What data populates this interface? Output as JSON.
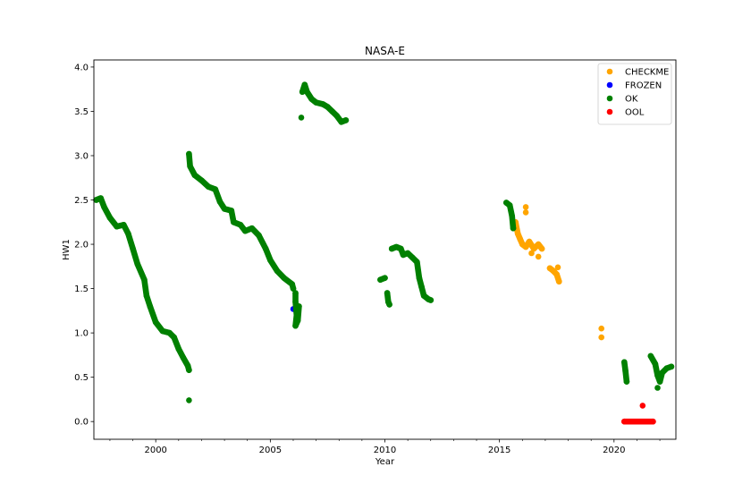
{
  "chart_data": {
    "type": "scatter",
    "title": "NASA-E",
    "xlabel": "Year",
    "ylabel": "HW1",
    "xlim": [
      1997.3,
      2022.7
    ],
    "ylim": [
      -0.2,
      4.08
    ],
    "x_ticks": [
      2000,
      2005,
      2010,
      2015,
      2020
    ],
    "x_tick_labels": [
      "2000",
      "2005",
      "2010",
      "2015",
      "2020"
    ],
    "y_ticks": [
      0.0,
      0.5,
      1.0,
      1.5,
      2.0,
      2.5,
      3.0,
      3.5,
      4.0
    ],
    "y_tick_labels": [
      "0.0",
      "0.5",
      "1.0",
      "1.5",
      "2.0",
      "2.5",
      "3.0",
      "3.5",
      "4.0"
    ],
    "grid": false,
    "legend_position": "top-right",
    "colors": {
      "CHECKME": "#ffa500",
      "FROZEN": "#0000ff",
      "OK": "#008000",
      "OOL": "#ff0000"
    },
    "series": [
      {
        "name": "CHECKME",
        "color": "#ffa500",
        "segments": [
          [
            [
              2015.7,
              2.25
            ],
            [
              2015.8,
              2.12
            ],
            [
              2015.9,
              2.06
            ],
            [
              2016.0,
              2.0
            ],
            [
              2016.15,
              1.97
            ],
            [
              2016.3,
              2.03
            ],
            [
              2016.5,
              1.95
            ],
            [
              2016.7,
              2.0
            ],
            [
              2016.85,
              1.95
            ]
          ],
          [
            [
              2017.2,
              1.73
            ],
            [
              2017.35,
              1.7
            ],
            [
              2017.5,
              1.66
            ],
            [
              2017.6,
              1.58
            ]
          ]
        ],
        "points": [
          [
            2016.15,
            2.42
          ],
          [
            2016.15,
            2.36
          ],
          [
            2016.4,
            1.9
          ],
          [
            2016.7,
            1.86
          ],
          [
            2017.55,
            1.74
          ],
          [
            2019.45,
            1.05
          ],
          [
            2019.45,
            0.95
          ]
        ]
      },
      {
        "name": "FROZEN",
        "color": "#0000ff",
        "segments": [],
        "points": [
          [
            2006.0,
            1.27
          ]
        ]
      },
      {
        "name": "OK",
        "color": "#008000",
        "segments": [
          [
            [
              1997.4,
              2.5
            ],
            [
              1997.6,
              2.52
            ],
            [
              1997.75,
              2.42
            ],
            [
              1998.0,
              2.3
            ],
            [
              1998.3,
              2.2
            ],
            [
              1998.6,
              2.22
            ],
            [
              1998.8,
              2.12
            ],
            [
              1999.0,
              1.95
            ],
            [
              1999.2,
              1.78
            ],
            [
              1999.5,
              1.6
            ],
            [
              1999.6,
              1.42
            ],
            [
              1999.75,
              1.3
            ],
            [
              2000.0,
              1.12
            ],
            [
              2000.3,
              1.02
            ],
            [
              2000.6,
              1.0
            ],
            [
              2000.8,
              0.95
            ],
            [
              2001.0,
              0.82
            ],
            [
              2001.2,
              0.72
            ],
            [
              2001.4,
              0.63
            ],
            [
              2001.45,
              0.58
            ]
          ],
          [
            [
              2001.45,
              3.02
            ],
            [
              2001.5,
              2.88
            ],
            [
              2001.7,
              2.78
            ],
            [
              2002.0,
              2.72
            ],
            [
              2002.3,
              2.65
            ],
            [
              2002.6,
              2.62
            ],
            [
              2002.8,
              2.48
            ],
            [
              2003.0,
              2.4
            ],
            [
              2003.3,
              2.38
            ],
            [
              2003.4,
              2.25
            ],
            [
              2003.7,
              2.22
            ],
            [
              2003.9,
              2.15
            ],
            [
              2004.2,
              2.18
            ],
            [
              2004.5,
              2.1
            ],
            [
              2004.8,
              1.95
            ],
            [
              2005.0,
              1.82
            ],
            [
              2005.3,
              1.7
            ],
            [
              2005.6,
              1.62
            ],
            [
              2005.95,
              1.55
            ],
            [
              2006.0,
              1.5
            ]
          ],
          [
            [
              2006.1,
              1.45
            ],
            [
              2006.1,
              1.35
            ],
            [
              2006.15,
              1.2
            ],
            [
              2006.1,
              1.08
            ],
            [
              2006.2,
              1.14
            ],
            [
              2006.25,
              1.3
            ]
          ],
          [
            [
              2006.4,
              3.72
            ],
            [
              2006.5,
              3.8
            ],
            [
              2006.6,
              3.72
            ],
            [
              2006.8,
              3.64
            ],
            [
              2007.0,
              3.6
            ],
            [
              2007.3,
              3.58
            ],
            [
              2007.5,
              3.55
            ],
            [
              2007.7,
              3.5
            ],
            [
              2007.9,
              3.45
            ],
            [
              2008.1,
              3.38
            ],
            [
              2008.3,
              3.4
            ]
          ],
          [
            [
              2009.8,
              1.6
            ],
            [
              2010.0,
              1.62
            ]
          ],
          [
            [
              2010.1,
              1.45
            ],
            [
              2010.15,
              1.35
            ],
            [
              2010.2,
              1.32
            ]
          ],
          [
            [
              2010.3,
              1.95
            ],
            [
              2010.5,
              1.97
            ],
            [
              2010.7,
              1.95
            ],
            [
              2010.8,
              1.88
            ],
            [
              2011.0,
              1.9
            ],
            [
              2011.2,
              1.85
            ],
            [
              2011.4,
              1.8
            ],
            [
              2011.5,
              1.62
            ],
            [
              2011.6,
              1.52
            ],
            [
              2011.7,
              1.42
            ],
            [
              2011.9,
              1.38
            ],
            [
              2012.0,
              1.37
            ]
          ],
          [
            [
              2015.3,
              2.47
            ],
            [
              2015.45,
              2.44
            ],
            [
              2015.55,
              2.32
            ],
            [
              2015.6,
              2.18
            ]
          ],
          [
            [
              2020.45,
              0.67
            ],
            [
              2020.5,
              0.57
            ],
            [
              2020.55,
              0.45
            ]
          ],
          [
            [
              2021.6,
              0.74
            ],
            [
              2021.8,
              0.65
            ],
            [
              2021.9,
              0.52
            ],
            [
              2022.0,
              0.45
            ],
            [
              2022.1,
              0.55
            ],
            [
              2022.3,
              0.6
            ],
            [
              2022.5,
              0.62
            ]
          ]
        ],
        "points": [
          [
            2001.45,
            0.24
          ],
          [
            2006.35,
            3.43
          ],
          [
            2021.9,
            0.38
          ]
        ]
      },
      {
        "name": "OOL",
        "color": "#ff0000",
        "segments": [
          [
            [
              2020.45,
              0.0
            ],
            [
              2021.7,
              0.0
            ]
          ]
        ],
        "points": [
          [
            2021.25,
            0.18
          ]
        ]
      }
    ]
  }
}
